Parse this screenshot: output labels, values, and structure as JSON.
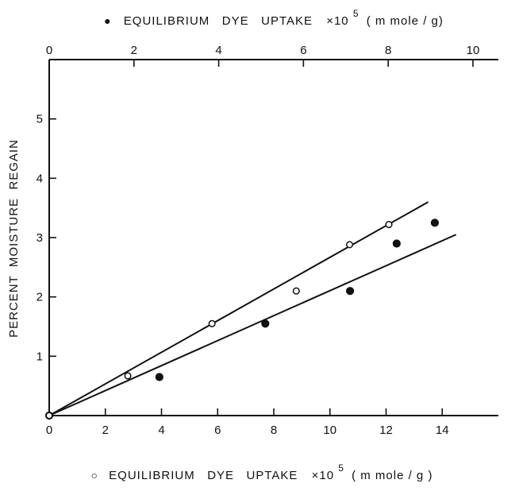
{
  "chart_data": {
    "type": "scatter",
    "top_axis": {
      "label_marker": "●",
      "label": "EQUILIBRIUM   DYE   UPTAKE",
      "label_suffix": "×10",
      "label_exp": "5",
      "label_units": "( m mole / g)",
      "ticks": [
        0,
        2,
        4,
        6,
        8,
        10
      ],
      "range": [
        0,
        10.6
      ]
    },
    "bottom_axis": {
      "label_marker": "○",
      "label": "EQUILIBRIUM   DYE   UPTAKE",
      "label_suffix": "×10",
      "label_exp": "5",
      "label_units": "( m mole / g )",
      "ticks": [
        0,
        2,
        4,
        6,
        8,
        10,
        12,
        14
      ],
      "range": [
        0,
        16
      ]
    },
    "y_axis": {
      "label": "PERCENT  MOISTURE  REGAIN",
      "ticks": [
        1,
        2,
        3,
        4,
        5
      ],
      "range": [
        0,
        6
      ]
    },
    "series": [
      {
        "marker": "filled",
        "axis": "top",
        "points": [
          [
            0.0,
            0.0
          ],
          [
            2.6,
            0.65
          ],
          [
            5.1,
            1.55
          ],
          [
            7.1,
            2.1
          ],
          [
            8.2,
            2.9
          ],
          [
            9.1,
            3.25
          ]
        ],
        "fit_line": [
          [
            0.0,
            0.0
          ],
          [
            9.6,
            3.05
          ]
        ]
      },
      {
        "marker": "open",
        "axis": "bottom",
        "points": [
          [
            0.0,
            0.0
          ],
          [
            2.8,
            0.67
          ],
          [
            5.8,
            1.55
          ],
          [
            8.8,
            2.1
          ],
          [
            10.7,
            2.88
          ],
          [
            12.1,
            3.22
          ]
        ],
        "fit_line": [
          [
            0.0,
            0.0
          ],
          [
            13.5,
            3.6
          ]
        ]
      }
    ],
    "grid": false,
    "colors": {
      "ink": "#111111",
      "background": "#ffffff"
    }
  }
}
